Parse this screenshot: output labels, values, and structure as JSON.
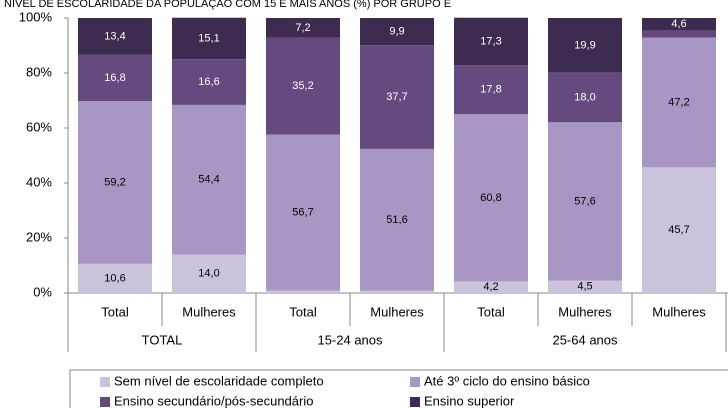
{
  "chart_data": {
    "type": "stacked-bar",
    "title": "NÍVEL DE ESCOLARIDADE DA POPULAÇÃO COM 15 E MAIS ANOS (%) POR GRUPO E",
    "groups": [
      {
        "name": "TOTAL",
        "categories": [
          "Total",
          "Mulheres"
        ]
      },
      {
        "name": "15-24 anos",
        "categories": [
          "Total",
          "Mulheres"
        ]
      },
      {
        "name": "25-64 anos",
        "categories": [
          "Total",
          "Mulheres",
          "Mulheres"
        ]
      }
    ],
    "series": [
      {
        "name": "Sem nível de escolaridade completo",
        "color": "#cbc2dc",
        "values": [
          10.6,
          14.0,
          0.9,
          0.8,
          4.2,
          4.5,
          45.7
        ],
        "value_labels": [
          "10,6",
          "14,0",
          null,
          null,
          "4,2",
          "4,5",
          "45,7"
        ]
      },
      {
        "name": "Até 3º ciclo do ensino básico",
        "color": "#a897c5",
        "values": [
          59.2,
          54.4,
          56.7,
          51.6,
          60.8,
          57.6,
          47.2
        ],
        "value_labels": [
          "59,2",
          "54,4",
          "56,7",
          "51,6",
          "60,8",
          "57,6",
          "47,2"
        ]
      },
      {
        "name": "Ensino secundário/pós-secundário",
        "color": "#654a80",
        "values": [
          16.8,
          16.6,
          35.2,
          37.7,
          17.8,
          18.0,
          2.5
        ],
        "value_labels": [
          "16,8",
          "16,6",
          "35,2",
          "37,7",
          "17,8",
          "18,0",
          null
        ]
      },
      {
        "name": "Ensino superior",
        "color": "#3e2b50",
        "values": [
          13.4,
          15.1,
          7.2,
          9.9,
          17.3,
          19.9,
          4.6
        ],
        "value_labels": [
          "13,4",
          "15,1",
          "7,2",
          "9,9",
          "17,3",
          "19,9",
          "4,6"
        ]
      }
    ],
    "ylim": [
      0,
      100
    ],
    "yticks": [
      {
        "value": 0,
        "label": "0%"
      },
      {
        "value": 20,
        "label": "20%"
      },
      {
        "value": 40,
        "label": "40%"
      },
      {
        "value": 60,
        "label": "60%"
      },
      {
        "value": 80,
        "label": "80%"
      },
      {
        "value": 100,
        "label": "100%"
      }
    ]
  }
}
